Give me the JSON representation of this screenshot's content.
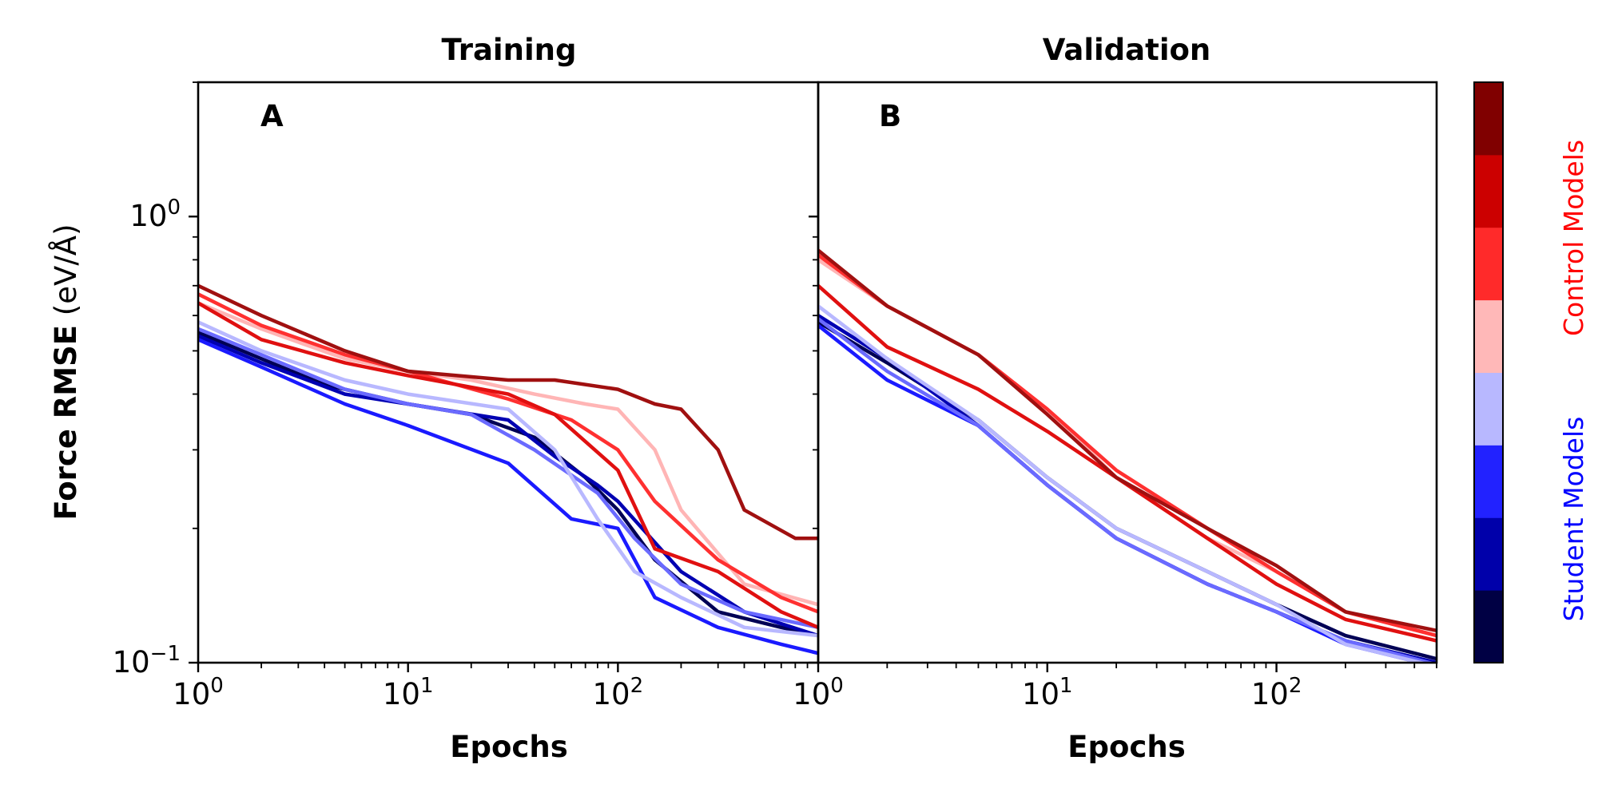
{
  "chart_data": [
    {
      "type": "line",
      "title": "Training",
      "panel_label": "A",
      "xlabel": "Epochs",
      "ylabel_bold": "Force RMSE",
      "ylabel_unit": "(eV/Å)",
      "xscale": "log",
      "yscale": "log",
      "xlim": [
        1,
        900
      ],
      "ylim": [
        0.1,
        2.0
      ],
      "x_ticks": [
        {
          "base": "10",
          "exp": "0"
        },
        {
          "base": "10",
          "exp": "1"
        },
        {
          "base": "10",
          "exp": "2"
        }
      ],
      "y_ticks": [
        {
          "base": "10",
          "exp": "0"
        },
        {
          "base": "10",
          "exp": "−1"
        }
      ],
      "grid": false,
      "series": [
        {
          "color": "#000055",
          "points": [
            [
              1,
              0.55
            ],
            [
              2,
              0.48
            ],
            [
              4,
              0.42
            ],
            [
              10,
              0.38
            ],
            [
              20,
              0.36
            ],
            [
              40,
              0.32
            ],
            [
              70,
              0.26
            ],
            [
              100,
              0.22
            ],
            [
              150,
              0.17
            ],
            [
              300,
              0.13
            ],
            [
              600,
              0.12
            ],
            [
              900,
              0.115
            ]
          ]
        },
        {
          "color": "#0000b2",
          "points": [
            [
              1,
              0.54
            ],
            [
              2,
              0.47
            ],
            [
              5,
              0.4
            ],
            [
              10,
              0.38
            ],
            [
              30,
              0.35
            ],
            [
              50,
              0.29
            ],
            [
              80,
              0.25
            ],
            [
              100,
              0.23
            ],
            [
              200,
              0.16
            ],
            [
              400,
              0.13
            ],
            [
              900,
              0.115
            ]
          ]
        },
        {
          "color": "#1a1aff",
          "points": [
            [
              1,
              0.53
            ],
            [
              2,
              0.46
            ],
            [
              5,
              0.38
            ],
            [
              10,
              0.34
            ],
            [
              30,
              0.28
            ],
            [
              60,
              0.21
            ],
            [
              100,
              0.2
            ],
            [
              150,
              0.14
            ],
            [
              300,
              0.12
            ],
            [
              600,
              0.11
            ],
            [
              900,
              0.105
            ]
          ]
        },
        {
          "color": "#6a6aff",
          "points": [
            [
              1,
              0.56
            ],
            [
              2,
              0.49
            ],
            [
              5,
              0.41
            ],
            [
              10,
              0.38
            ],
            [
              20,
              0.36
            ],
            [
              40,
              0.3
            ],
            [
              80,
              0.24
            ],
            [
              120,
              0.19
            ],
            [
              200,
              0.15
            ],
            [
              400,
              0.13
            ],
            [
              900,
              0.12
            ]
          ]
        },
        {
          "color": "#b8b8ff",
          "points": [
            [
              1,
              0.58
            ],
            [
              2,
              0.5
            ],
            [
              5,
              0.43
            ],
            [
              10,
              0.4
            ],
            [
              30,
              0.37
            ],
            [
              50,
              0.3
            ],
            [
              80,
              0.21
            ],
            [
              120,
              0.16
            ],
            [
              200,
              0.14
            ],
            [
              400,
              0.12
            ],
            [
              900,
              0.115
            ]
          ]
        },
        {
          "color": "#ffb5b5",
          "points": [
            [
              1,
              0.64
            ],
            [
              2,
              0.56
            ],
            [
              5,
              0.48
            ],
            [
              10,
              0.45
            ],
            [
              20,
              0.43
            ],
            [
              40,
              0.4
            ],
            [
              70,
              0.38
            ],
            [
              100,
              0.37
            ],
            [
              150,
              0.3
            ],
            [
              200,
              0.22
            ],
            [
              400,
              0.15
            ],
            [
              900,
              0.135
            ]
          ]
        },
        {
          "color": "#ff3030",
          "points": [
            [
              1,
              0.67
            ],
            [
              2,
              0.57
            ],
            [
              5,
              0.49
            ],
            [
              10,
              0.45
            ],
            [
              30,
              0.39
            ],
            [
              60,
              0.35
            ],
            [
              100,
              0.3
            ],
            [
              150,
              0.23
            ],
            [
              300,
              0.17
            ],
            [
              600,
              0.14
            ],
            [
              900,
              0.13
            ]
          ]
        },
        {
          "color": "#e01010",
          "points": [
            [
              1,
              0.64
            ],
            [
              2,
              0.53
            ],
            [
              5,
              0.47
            ],
            [
              10,
              0.44
            ],
            [
              30,
              0.4
            ],
            [
              50,
              0.36
            ],
            [
              100,
              0.27
            ],
            [
              150,
              0.18
            ],
            [
              300,
              0.16
            ],
            [
              600,
              0.13
            ],
            [
              900,
              0.12
            ]
          ]
        },
        {
          "color": "#a01010",
          "points": [
            [
              1,
              0.7
            ],
            [
              2,
              0.6
            ],
            [
              5,
              0.5
            ],
            [
              10,
              0.45
            ],
            [
              30,
              0.43
            ],
            [
              50,
              0.43
            ],
            [
              100,
              0.41
            ],
            [
              150,
              0.38
            ],
            [
              200,
              0.37
            ],
            [
              300,
              0.3
            ],
            [
              400,
              0.22
            ],
            [
              700,
              0.19
            ],
            [
              900,
              0.19
            ]
          ]
        }
      ]
    },
    {
      "type": "line",
      "title": "Validation",
      "panel_label": "B",
      "xlabel": "Epochs",
      "xscale": "log",
      "yscale": "log",
      "xlim": [
        1,
        500
      ],
      "ylim": [
        0.1,
        2.0
      ],
      "x_ticks": [
        {
          "base": "10",
          "exp": "0"
        },
        {
          "base": "10",
          "exp": "1"
        },
        {
          "base": "10",
          "exp": "2"
        }
      ],
      "grid": false,
      "series": [
        {
          "color": "#000055",
          "points": [
            [
              1,
              0.58
            ],
            [
              2,
              0.47
            ],
            [
              5,
              0.35
            ],
            [
              10,
              0.26
            ],
            [
              20,
              0.2
            ],
            [
              50,
              0.16
            ],
            [
              100,
              0.135
            ],
            [
              200,
              0.115
            ],
            [
              500,
              0.102
            ]
          ]
        },
        {
          "color": "#0000b2",
          "points": [
            [
              1,
              0.6
            ],
            [
              2,
              0.48
            ],
            [
              5,
              0.34
            ],
            [
              10,
              0.25
            ],
            [
              20,
              0.19
            ],
            [
              50,
              0.15
            ],
            [
              100,
              0.13
            ],
            [
              200,
              0.112
            ],
            [
              500,
              0.1
            ]
          ]
        },
        {
          "color": "#1a1aff",
          "points": [
            [
              1,
              0.57
            ],
            [
              2,
              0.43
            ],
            [
              5,
              0.34
            ],
            [
              10,
              0.25
            ],
            [
              20,
              0.19
            ],
            [
              50,
              0.15
            ],
            [
              100,
              0.13
            ],
            [
              200,
              0.11
            ],
            [
              500,
              0.098
            ]
          ]
        },
        {
          "color": "#6a6aff",
          "points": [
            [
              1,
              0.59
            ],
            [
              2,
              0.45
            ],
            [
              5,
              0.34
            ],
            [
              10,
              0.25
            ],
            [
              20,
              0.19
            ],
            [
              50,
              0.15
            ],
            [
              100,
              0.13
            ],
            [
              200,
              0.112
            ],
            [
              500,
              0.099
            ]
          ]
        },
        {
          "color": "#b8b8ff",
          "points": [
            [
              1,
              0.63
            ],
            [
              2,
              0.48
            ],
            [
              5,
              0.35
            ],
            [
              10,
              0.26
            ],
            [
              20,
              0.2
            ],
            [
              50,
              0.16
            ],
            [
              100,
              0.135
            ],
            [
              200,
              0.11
            ],
            [
              500,
              0.098
            ]
          ]
        },
        {
          "color": "#ffb5b5",
          "points": [
            [
              1,
              0.8
            ],
            [
              2,
              0.63
            ],
            [
              5,
              0.49
            ],
            [
              10,
              0.37
            ],
            [
              20,
              0.26
            ],
            [
              50,
              0.19
            ],
            [
              100,
              0.16
            ],
            [
              200,
              0.13
            ],
            [
              500,
              0.115
            ]
          ]
        },
        {
          "color": "#ff3030",
          "points": [
            [
              1,
              0.82
            ],
            [
              2,
              0.63
            ],
            [
              5,
              0.49
            ],
            [
              10,
              0.37
            ],
            [
              20,
              0.27
            ],
            [
              50,
              0.2
            ],
            [
              100,
              0.16
            ],
            [
              200,
              0.13
            ],
            [
              500,
              0.115
            ]
          ]
        },
        {
          "color": "#e01010",
          "points": [
            [
              1,
              0.7
            ],
            [
              2,
              0.51
            ],
            [
              5,
              0.41
            ],
            [
              10,
              0.33
            ],
            [
              20,
              0.26
            ],
            [
              50,
              0.19
            ],
            [
              100,
              0.15
            ],
            [
              200,
              0.125
            ],
            [
              500,
              0.112
            ]
          ]
        },
        {
          "color": "#a01010",
          "points": [
            [
              1,
              0.84
            ],
            [
              2,
              0.63
            ],
            [
              5,
              0.49
            ],
            [
              10,
              0.36
            ],
            [
              20,
              0.26
            ],
            [
              50,
              0.2
            ],
            [
              100,
              0.165
            ],
            [
              200,
              0.13
            ],
            [
              500,
              0.118
            ]
          ]
        }
      ]
    }
  ],
  "colorbar": {
    "colors": [
      "#000044",
      "#0000aa",
      "#2222ff",
      "#b8b8ff",
      "#ffb8b8",
      "#ff2a2a",
      "#cc0000",
      "#800000"
    ],
    "labels": [
      {
        "text": "Student Models",
        "color": "#0000ff"
      },
      {
        "text": "Control Models",
        "color": "#ff0000"
      }
    ]
  }
}
